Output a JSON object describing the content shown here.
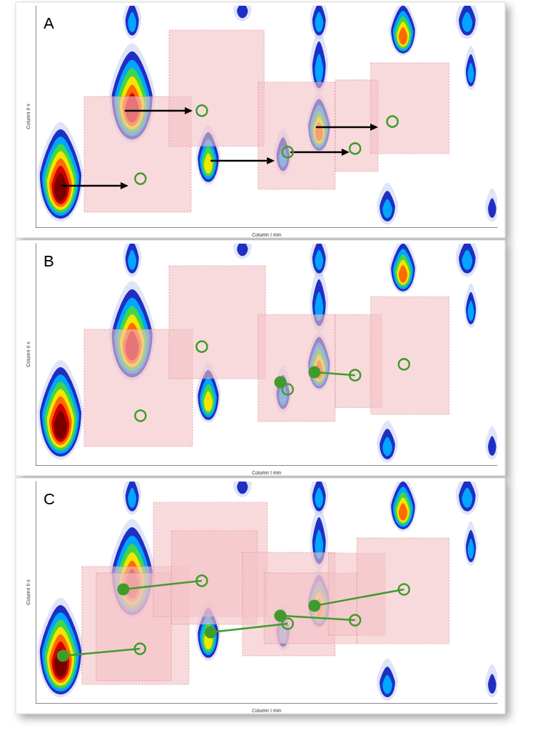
{
  "chart_data": [
    {
      "type": "scatter",
      "title": "A",
      "x_label": "Column I min",
      "y_label": "Column II s",
      "xlim": [
        0,
        100
      ],
      "ylim": [
        0,
        100
      ],
      "tick_labels": false,
      "grid": false,
      "peaks": {
        "colors": [
          "#b8c4ee",
          "#1f2fc4",
          "#00a6ff",
          "#3fd64a",
          "#f2e600",
          "#ff6a00",
          "#d40000",
          "#7a0000"
        ],
        "cells": [
          [
            5.4,
            25,
            10,
            45,
            8
          ],
          [
            20.9,
            60.6,
            10,
            45,
            7
          ],
          [
            37.4,
            32.6,
            5.4,
            27,
            5
          ],
          [
            53.6,
            34.2,
            3.9,
            21,
            3
          ],
          [
            61.4,
            47,
            5.4,
            27,
            6
          ],
          [
            61.4,
            75,
            4,
            29,
            3
          ],
          [
            76.2,
            10.6,
            4.6,
            19,
            3
          ],
          [
            20.9,
            95,
            4,
            20,
            3
          ],
          [
            44.8,
            99,
            4,
            12,
            2
          ],
          [
            61.4,
            95,
            4,
            20,
            3
          ],
          [
            79.6,
            90,
            6,
            25,
            6
          ],
          [
            93.5,
            95,
            5,
            20,
            3
          ],
          [
            94.3,
            72,
            3,
            20,
            3
          ],
          [
            98.9,
            10,
            3,
            15,
            2
          ]
        ]
      },
      "regions": {
        "color": "#f4c2c6",
        "boxes": [
          [
            10.5,
            6.8,
            33.7,
            59
          ],
          [
            28.9,
            36.5,
            49.5,
            89
          ],
          [
            48.2,
            17.1,
            64.9,
            65.5
          ],
          [
            64.9,
            25.2,
            74.2,
            66.5
          ],
          [
            72.6,
            33.2,
            89.6,
            74.2
          ]
        ]
      },
      "links": {
        "color": "#000000",
        "line_style": "arrow",
        "segments": [
          [
            19.3,
            52.6,
            34,
            52.6
          ],
          [
            5.4,
            18.7,
            20.1,
            18.7
          ],
          [
            37.9,
            30,
            51.8,
            30
          ],
          [
            55.2,
            33.9,
            68,
            33.9
          ],
          [
            60.7,
            45.2,
            74.2,
            45.2
          ]
        ]
      },
      "points": {
        "color": "#3f9c2a",
        "open": [
          [
            36,
            52.6
          ],
          [
            22.7,
            21.9
          ],
          [
            54.6,
            33.9
          ],
          [
            69.2,
            35.5
          ],
          [
            77.3,
            47.7
          ]
        ],
        "filled": []
      }
    },
    {
      "type": "scatter",
      "title": "B",
      "x_label": "Column I min",
      "y_label": "Column II s",
      "xlim": [
        0,
        100
      ],
      "ylim": [
        0,
        100
      ],
      "tick_labels": false,
      "grid": false,
      "peaks": {
        "colors": [
          "#b8c4ee",
          "#1f2fc4",
          "#00a6ff",
          "#3fd64a",
          "#f2e600",
          "#ff6a00",
          "#d40000",
          "#7a0000"
        ],
        "cells": [
          [
            5.4,
            25,
            10,
            45,
            8
          ],
          [
            20.9,
            60.6,
            10,
            45,
            7
          ],
          [
            37.4,
            32.6,
            5.4,
            27,
            5
          ],
          [
            53.6,
            34.2,
            3.9,
            21,
            3
          ],
          [
            61.4,
            47,
            5.4,
            27,
            6
          ],
          [
            61.4,
            75,
            4,
            29,
            3
          ],
          [
            76.2,
            10.6,
            4.6,
            19,
            3
          ],
          [
            20.9,
            95,
            4,
            20,
            3
          ],
          [
            44.8,
            99,
            4,
            12,
            2
          ],
          [
            61.4,
            95,
            4,
            20,
            3
          ],
          [
            79.6,
            90,
            6,
            25,
            6
          ],
          [
            93.5,
            95,
            5,
            20,
            3
          ],
          [
            94.3,
            72,
            3,
            20,
            3
          ],
          [
            98.9,
            10,
            3,
            15,
            2
          ]
        ]
      },
      "regions": {
        "color": "#f4c2c6",
        "boxes": [
          [
            10.5,
            8.4,
            34,
            61.3
          ],
          [
            28.9,
            39,
            49.8,
            90
          ],
          [
            48.2,
            19.7,
            64.9,
            68
          ],
          [
            64.9,
            26,
            75,
            68
          ],
          [
            72.6,
            22.9,
            89.6,
            76
          ]
        ]
      },
      "links": {
        "color": "#3f9c2a",
        "line_style": "solid",
        "segments": [
          [
            60.4,
            41.9,
            69.2,
            40.6
          ]
        ]
      },
      "points": {
        "color": "#3f9c2a",
        "open": [
          [
            36,
            53.5
          ],
          [
            22.7,
            22.3
          ],
          [
            54.6,
            34.2
          ],
          [
            69.2,
            40.6
          ],
          [
            79.8,
            45.5
          ]
        ],
        "filled": [
          [
            53,
            37.4
          ],
          [
            60.4,
            41.9
          ]
        ]
      }
    },
    {
      "type": "scatter",
      "title": "C",
      "x_label": "Column I min",
      "y_label": "Column II s",
      "xlim": [
        0,
        100
      ],
      "ylim": [
        0,
        100
      ],
      "tick_labels": false,
      "grid": false,
      "peaks": {
        "colors": [
          "#b8c4ee",
          "#1f2fc4",
          "#00a6ff",
          "#3fd64a",
          "#f2e600",
          "#ff6a00",
          "#d40000",
          "#7a0000"
        ],
        "cells": [
          [
            5.4,
            25,
            10,
            45,
            8
          ],
          [
            20.9,
            60.6,
            10,
            45,
            7
          ],
          [
            37.4,
            32.6,
            5.4,
            27,
            5
          ],
          [
            53.6,
            34.2,
            3.9,
            21,
            3
          ],
          [
            61.4,
            47,
            5.4,
            27,
            6
          ],
          [
            61.4,
            75,
            4,
            29,
            3
          ],
          [
            76.2,
            10.6,
            4.6,
            19,
            3
          ],
          [
            20.9,
            95,
            4,
            20,
            3
          ],
          [
            44.8,
            99,
            4,
            12,
            2
          ],
          [
            61.4,
            95,
            4,
            20,
            3
          ],
          [
            79.6,
            90,
            6,
            25,
            6
          ],
          [
            93.5,
            95,
            5,
            20,
            3
          ],
          [
            94.3,
            72,
            3,
            20,
            3
          ],
          [
            98.9,
            10,
            3,
            15,
            2
          ]
        ]
      },
      "regions": {
        "color": "#f4c2c6",
        "boxes": [
          [
            10,
            8.4,
            33.2,
            61.6
          ],
          [
            13.1,
            10,
            29.4,
            58.7
          ],
          [
            25.5,
            39,
            50.2,
            90.6
          ],
          [
            29.4,
            35.5,
            48,
            77.7
          ],
          [
            44.8,
            21.3,
            64.9,
            68
          ],
          [
            49.5,
            26.8,
            69.6,
            58.7
          ],
          [
            63.4,
            30.6,
            75.7,
            67.7
          ],
          [
            69.6,
            26.8,
            89.6,
            74.5
          ]
        ]
      },
      "links": {
        "color": "#3f9c2a",
        "line_style": "solid",
        "segments": [
          [
            5.9,
            21.3,
            22.6,
            24.5
          ],
          [
            19,
            51.3,
            36,
            55.2
          ],
          [
            37.9,
            31.9,
            54.6,
            35.8
          ],
          [
            53,
            39.4,
            69.2,
            37.4
          ],
          [
            60.4,
            43.9,
            79.8,
            51.3
          ]
        ]
      },
      "points": {
        "color": "#3f9c2a",
        "open": [
          [
            22.6,
            24.5
          ],
          [
            36,
            55.2
          ],
          [
            54.6,
            35.8
          ],
          [
            69.2,
            37.4
          ],
          [
            79.8,
            51.3
          ]
        ],
        "filled": [
          [
            5.9,
            21.3
          ],
          [
            19,
            51.3
          ],
          [
            37.9,
            31.9
          ],
          [
            53,
            39.4
          ],
          [
            60.4,
            43.9
          ]
        ]
      }
    }
  ]
}
